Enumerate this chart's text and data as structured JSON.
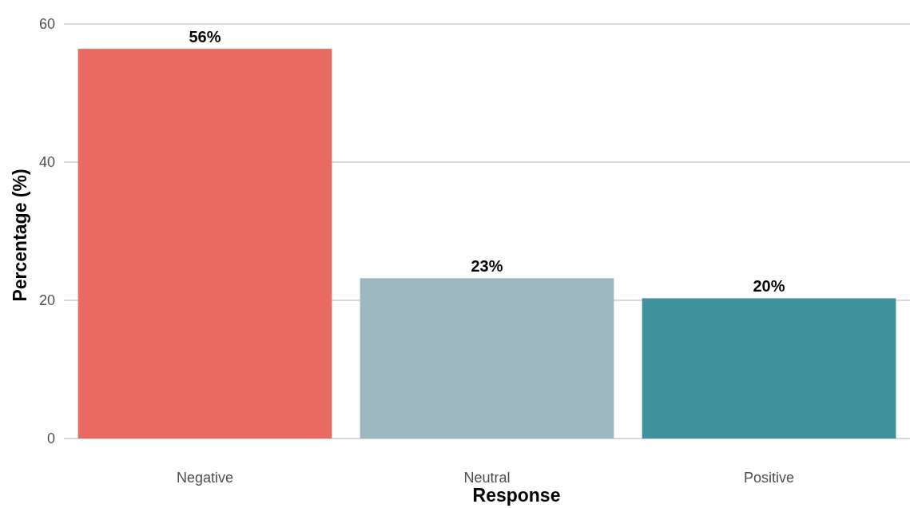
{
  "chart_data": {
    "type": "bar",
    "xlabel": "Response",
    "ylabel": "Percentage (%)",
    "categories": [
      "Negative",
      "Neutral",
      "Positive"
    ],
    "values": [
      56.4,
      23.2,
      20.3
    ],
    "colors": [
      "#e86a61",
      "#9db7c1",
      "#3f919c"
    ],
    "value_labels": [
      "56%",
      "23%",
      "20%"
    ],
    "ylim": [
      0,
      60
    ],
    "yticks": [
      0,
      20,
      40,
      60
    ],
    "grid": "y"
  }
}
